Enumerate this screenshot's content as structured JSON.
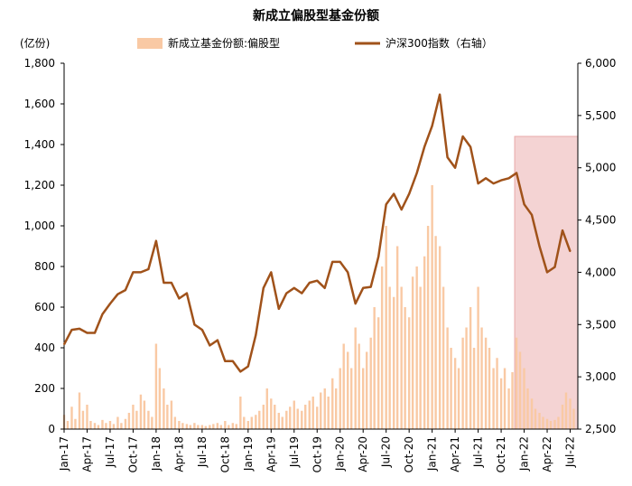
{
  "chart_data": {
    "type": "bar+line",
    "title": "新成立偏股型基金份额",
    "left_unit": "(亿份)",
    "left_ylim": [
      0,
      1800
    ],
    "left_ticks": [
      "0",
      "200",
      "400",
      "600",
      "800",
      "1,000",
      "1,200",
      "1,400",
      "1,600",
      "1,800"
    ],
    "right_ylim": [
      2500,
      6000
    ],
    "right_ticks": [
      "2,500",
      "3,000",
      "3,500",
      "4,000",
      "4,500",
      "5,000",
      "5,500",
      "6,000"
    ],
    "x_range": [
      "2017-01",
      "2022-08"
    ],
    "x_ticks": [
      "Jan-17",
      "Apr-17",
      "Jul-17",
      "Oct-17",
      "Jan-18",
      "Apr-18",
      "Jul-18",
      "Oct-18",
      "Jan-19",
      "Apr-19",
      "Jul-19",
      "Oct-19",
      "Jan-20",
      "Apr-20",
      "Jul-20",
      "Oct-20",
      "Jan-21",
      "Apr-21",
      "Jul-21",
      "Oct-21",
      "Jan-22",
      "Apr-22",
      "Jul-22"
    ],
    "highlight": {
      "from": "2021-12",
      "to": "2022-08",
      "color": "#f4d3d3",
      "border": "#e8a8a8"
    },
    "series": [
      {
        "name": "新成立基金份额:偏股型",
        "axis": "left",
        "kind": "bar",
        "color": "#f9c9a4",
        "points": [
          [
            "2017-01",
            70
          ],
          [
            "2017-01-15",
            40
          ],
          [
            "2017-02",
            110
          ],
          [
            "2017-02-15",
            50
          ],
          [
            "2017-03",
            180
          ],
          [
            "2017-03-15",
            90
          ],
          [
            "2017-04",
            120
          ],
          [
            "2017-04-15",
            40
          ],
          [
            "2017-05",
            30
          ],
          [
            "2017-05-15",
            20
          ],
          [
            "2017-06",
            45
          ],
          [
            "2017-06-15",
            30
          ],
          [
            "2017-07",
            40
          ],
          [
            "2017-07-15",
            25
          ],
          [
            "2017-08",
            60
          ],
          [
            "2017-08-15",
            30
          ],
          [
            "2017-09",
            50
          ],
          [
            "2017-09-15",
            80
          ],
          [
            "2017-10",
            120
          ],
          [
            "2017-10-15",
            90
          ],
          [
            "2017-11",
            170
          ],
          [
            "2017-11-15",
            140
          ],
          [
            "2017-12",
            90
          ],
          [
            "2017-12-15",
            60
          ],
          [
            "2018-01",
            420
          ],
          [
            "2018-01-15",
            300
          ],
          [
            "2018-02",
            200
          ],
          [
            "2018-02-15",
            120
          ],
          [
            "2018-03",
            140
          ],
          [
            "2018-03-15",
            60
          ],
          [
            "2018-04",
            40
          ],
          [
            "2018-04-15",
            30
          ],
          [
            "2018-05",
            25
          ],
          [
            "2018-05-15",
            20
          ],
          [
            "2018-06",
            30
          ],
          [
            "2018-06-15",
            20
          ],
          [
            "2018-07",
            20
          ],
          [
            "2018-07-15",
            15
          ],
          [
            "2018-08",
            20
          ],
          [
            "2018-08-15",
            25
          ],
          [
            "2018-09",
            30
          ],
          [
            "2018-09-15",
            20
          ],
          [
            "2018-10",
            40
          ],
          [
            "2018-10-15",
            20
          ],
          [
            "2018-11",
            30
          ],
          [
            "2018-11-15",
            25
          ],
          [
            "2018-12",
            160
          ],
          [
            "2018-12-15",
            60
          ],
          [
            "2019-01",
            40
          ],
          [
            "2019-01-15",
            60
          ],
          [
            "2019-02",
            70
          ],
          [
            "2019-02-15",
            90
          ],
          [
            "2019-03",
            120
          ],
          [
            "2019-03-15",
            200
          ],
          [
            "2019-04",
            150
          ],
          [
            "2019-04-15",
            120
          ],
          [
            "2019-05",
            80
          ],
          [
            "2019-05-15",
            60
          ],
          [
            "2019-06",
            90
          ],
          [
            "2019-06-15",
            110
          ],
          [
            "2019-07",
            140
          ],
          [
            "2019-07-15",
            100
          ],
          [
            "2019-08",
            90
          ],
          [
            "2019-08-15",
            120
          ],
          [
            "2019-09",
            140
          ],
          [
            "2019-09-15",
            160
          ],
          [
            "2019-10",
            110
          ],
          [
            "2019-10-15",
            180
          ],
          [
            "2019-11",
            200
          ],
          [
            "2019-11-15",
            160
          ],
          [
            "2019-12",
            250
          ],
          [
            "2019-12-15",
            200
          ],
          [
            "2020-01",
            300
          ],
          [
            "2020-01-15",
            420
          ],
          [
            "2020-02",
            380
          ],
          [
            "2020-02-15",
            300
          ],
          [
            "2020-03",
            500
          ],
          [
            "2020-03-15",
            420
          ],
          [
            "2020-04",
            300
          ],
          [
            "2020-04-15",
            380
          ],
          [
            "2020-05",
            450
          ],
          [
            "2020-05-15",
            600
          ],
          [
            "2020-06",
            550
          ],
          [
            "2020-06-15",
            800
          ],
          [
            "2020-07",
            1000
          ],
          [
            "2020-07-15",
            700
          ],
          [
            "2020-08",
            650
          ],
          [
            "2020-08-15",
            900
          ],
          [
            "2020-09",
            700
          ],
          [
            "2020-09-15",
            600
          ],
          [
            "2020-10",
            550
          ],
          [
            "2020-10-15",
            750
          ],
          [
            "2020-11",
            800
          ],
          [
            "2020-11-15",
            700
          ],
          [
            "2020-12",
            850
          ],
          [
            "2020-12-15",
            1000
          ],
          [
            "2021-01",
            1200
          ],
          [
            "2021-01-15",
            950
          ],
          [
            "2021-02",
            900
          ],
          [
            "2021-02-15",
            700
          ],
          [
            "2021-03",
            500
          ],
          [
            "2021-03-15",
            400
          ],
          [
            "2021-04",
            350
          ],
          [
            "2021-04-15",
            300
          ],
          [
            "2021-05",
            450
          ],
          [
            "2021-05-15",
            500
          ],
          [
            "2021-06",
            600
          ],
          [
            "2021-06-15",
            400
          ],
          [
            "2021-07",
            700
          ],
          [
            "2021-07-15",
            500
          ],
          [
            "2021-08",
            450
          ],
          [
            "2021-08-15",
            400
          ],
          [
            "2021-09",
            300
          ],
          [
            "2021-09-15",
            350
          ],
          [
            "2021-10",
            250
          ],
          [
            "2021-10-15",
            300
          ],
          [
            "2021-11",
            200
          ],
          [
            "2021-11-15",
            280
          ],
          [
            "2021-12",
            450
          ],
          [
            "2021-12-15",
            380
          ],
          [
            "2022-01",
            300
          ],
          [
            "2022-01-15",
            200
          ],
          [
            "2022-02",
            150
          ],
          [
            "2022-02-15",
            100
          ],
          [
            "2022-03",
            80
          ],
          [
            "2022-03-15",
            60
          ],
          [
            "2022-04",
            50
          ],
          [
            "2022-04-15",
            40
          ],
          [
            "2022-05",
            45
          ],
          [
            "2022-05-15",
            60
          ],
          [
            "2022-06",
            120
          ],
          [
            "2022-06-15",
            180
          ],
          [
            "2022-07",
            150
          ],
          [
            "2022-07-15",
            100
          ]
        ]
      },
      {
        "name": "沪深300指数（右轴）",
        "axis": "right",
        "kind": "line",
        "color": "#a0521a",
        "points": [
          [
            "2017-01",
            3310
          ],
          [
            "2017-02",
            3450
          ],
          [
            "2017-03",
            3460
          ],
          [
            "2017-04",
            3420
          ],
          [
            "2017-05",
            3420
          ],
          [
            "2017-06",
            3600
          ],
          [
            "2017-07",
            3700
          ],
          [
            "2017-08",
            3790
          ],
          [
            "2017-09",
            3830
          ],
          [
            "2017-10",
            4000
          ],
          [
            "2017-11",
            4000
          ],
          [
            "2017-12",
            4030
          ],
          [
            "2018-01",
            4300
          ],
          [
            "2018-02",
            3900
          ],
          [
            "2018-03",
            3900
          ],
          [
            "2018-04",
            3750
          ],
          [
            "2018-05",
            3800
          ],
          [
            "2018-06",
            3500
          ],
          [
            "2018-07",
            3450
          ],
          [
            "2018-08",
            3300
          ],
          [
            "2018-09",
            3350
          ],
          [
            "2018-10",
            3150
          ],
          [
            "2018-11",
            3150
          ],
          [
            "2018-12",
            3050
          ],
          [
            "2019-01",
            3100
          ],
          [
            "2019-02",
            3400
          ],
          [
            "2019-03",
            3850
          ],
          [
            "2019-04",
            4000
          ],
          [
            "2019-05",
            3650
          ],
          [
            "2019-06",
            3800
          ],
          [
            "2019-07",
            3850
          ],
          [
            "2019-08",
            3800
          ],
          [
            "2019-09",
            3900
          ],
          [
            "2019-10",
            3920
          ],
          [
            "2019-11",
            3850
          ],
          [
            "2019-12",
            4100
          ],
          [
            "2020-01",
            4100
          ],
          [
            "2020-02",
            4000
          ],
          [
            "2020-03",
            3700
          ],
          [
            "2020-04",
            3850
          ],
          [
            "2020-05",
            3860
          ],
          [
            "2020-06",
            4150
          ],
          [
            "2020-07",
            4650
          ],
          [
            "2020-08",
            4750
          ],
          [
            "2020-09",
            4600
          ],
          [
            "2020-10",
            4750
          ],
          [
            "2020-11",
            4950
          ],
          [
            "2020-12",
            5200
          ],
          [
            "2021-01",
            5400
          ],
          [
            "2021-02",
            5700
          ],
          [
            "2021-03",
            5100
          ],
          [
            "2021-04",
            5000
          ],
          [
            "2021-05",
            5300
          ],
          [
            "2021-06",
            5200
          ],
          [
            "2021-07",
            4850
          ],
          [
            "2021-08",
            4900
          ],
          [
            "2021-09",
            4850
          ],
          [
            "2021-10",
            4880
          ],
          [
            "2021-11",
            4900
          ],
          [
            "2021-12",
            4950
          ],
          [
            "2022-01",
            4650
          ],
          [
            "2022-02",
            4550
          ],
          [
            "2022-03",
            4250
          ],
          [
            "2022-04",
            4000
          ],
          [
            "2022-05",
            4050
          ],
          [
            "2022-06",
            4400
          ],
          [
            "2022-07",
            4200
          ]
        ]
      }
    ]
  }
}
